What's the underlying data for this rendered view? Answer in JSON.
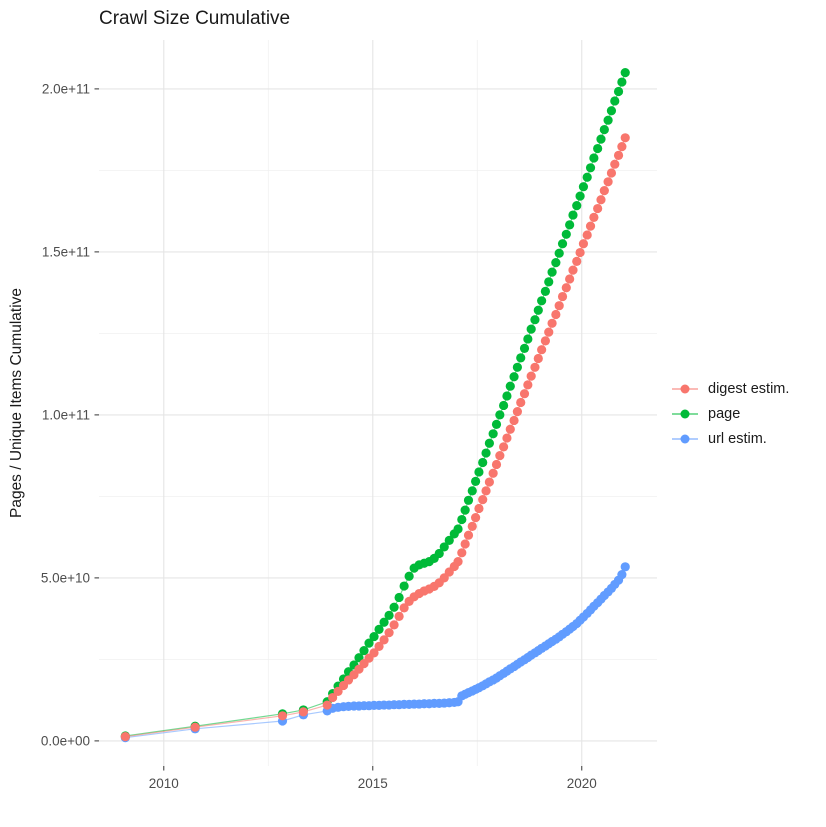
{
  "title": "Crawl Size Cumulative",
  "colors": {
    "digest_estim": "#F8766D",
    "page": "#00BA38",
    "url_estim": "#619CFF",
    "grid_major": "#E5E5E5",
    "grid_minor": "#F0F0F0",
    "tick_mark": "#333333",
    "axis_text": "#4d4d4d",
    "title_text": "#1a1a1a",
    "background": "#ffffff"
  },
  "chart_data": {
    "type": "scatter",
    "title": "Crawl Size Cumulative",
    "xlabel": "",
    "ylabel": "Pages / Unique Items Cumulative",
    "grid": true,
    "legend_position": "right",
    "y_unit": "pages, billions (1e9)",
    "xlim": [
      2008.45,
      2021.8
    ],
    "ylim_billions": [
      -7.7,
      215
    ],
    "x_axis": {
      "major_ticks": [
        2010,
        2015,
        2020
      ],
      "major_labels": [
        "2010",
        "2015",
        "2020"
      ],
      "minor_ticks": [
        2012.5,
        2017.5
      ]
    },
    "y_axis": {
      "major_ticks_billions": [
        0,
        50,
        100,
        150,
        200
      ],
      "major_labels": [
        "0.0e+00",
        "5.0e+10",
        "1.0e+11",
        "1.5e+11",
        "2.0e+11"
      ],
      "minor_ticks_billions": [
        25,
        75,
        125,
        175
      ]
    },
    "x": [
      2009.08,
      2010.75,
      2012.84,
      2013.34,
      2013.91,
      2014.04,
      2014.17,
      2014.3,
      2014.42,
      2014.55,
      2014.67,
      2014.79,
      2014.91,
      2015.03,
      2015.15,
      2015.27,
      2015.39,
      2015.51,
      2015.63,
      2015.75,
      2015.87,
      2015.99,
      2016.11,
      2016.23,
      2016.35,
      2016.47,
      2016.59,
      2016.71,
      2016.83,
      2016.95,
      2017.04,
      2017.13,
      2017.21,
      2017.29,
      2017.38,
      2017.46,
      2017.54,
      2017.63,
      2017.71,
      2017.79,
      2017.88,
      2017.96,
      2018.04,
      2018.13,
      2018.21,
      2018.29,
      2018.38,
      2018.46,
      2018.54,
      2018.63,
      2018.71,
      2018.79,
      2018.88,
      2018.96,
      2019.04,
      2019.13,
      2019.21,
      2019.29,
      2019.38,
      2019.46,
      2019.54,
      2019.63,
      2019.71,
      2019.79,
      2019.88,
      2019.96,
      2020.04,
      2020.13,
      2020.21,
      2020.29,
      2020.38,
      2020.46,
      2020.54,
      2020.63,
      2020.71,
      2020.79,
      2020.88,
      2020.96,
      2021.04
    ],
    "series": [
      {
        "name": "digest estim.",
        "color": "#F8766D",
        "y_billions": [
          1.3,
          4.2,
          7.7,
          8.9,
          11,
          13.3,
          15.2,
          17,
          18.7,
          20.3,
          22,
          23.7,
          25.4,
          27,
          29,
          31,
          33.2,
          35.6,
          38.2,
          40.8,
          42.8,
          44.2,
          45.2,
          46,
          46.6,
          47.4,
          48.5,
          50,
          51.8,
          53.5,
          55,
          57.7,
          60.4,
          63.1,
          65.8,
          68.5,
          71.3,
          74,
          76.7,
          79.4,
          82.1,
          84.8,
          87.5,
          90.2,
          92.9,
          95.6,
          98.3,
          101,
          103.8,
          106.5,
          109.2,
          111.9,
          114.6,
          117.3,
          120,
          122.7,
          125.4,
          128.1,
          130.8,
          133.5,
          136.3,
          139,
          141.7,
          144.4,
          147.1,
          149.8,
          152.5,
          155.2,
          157.9,
          160.6,
          163.3,
          166,
          168.8,
          171.5,
          174.2,
          176.9,
          179.6,
          182.3,
          185
        ]
      },
      {
        "name": "page",
        "color": "#00BA38",
        "y_billions": [
          1.5,
          4.5,
          8.3,
          9.5,
          12,
          14.5,
          16.8,
          19,
          21.2,
          23.3,
          25.5,
          27.7,
          30,
          32,
          34.2,
          36.4,
          38.5,
          41,
          44,
          47.5,
          50.5,
          53,
          54,
          54.5,
          55,
          56,
          57.5,
          59.5,
          61.5,
          63.5,
          65,
          67.9,
          70.8,
          73.8,
          76.7,
          79.6,
          82.5,
          85.4,
          88.3,
          91.3,
          94.2,
          97.1,
          100,
          102.9,
          105.8,
          108.8,
          111.7,
          114.6,
          117.5,
          120.4,
          123.3,
          126.3,
          129.2,
          132.1,
          135,
          137.9,
          140.8,
          143.8,
          146.7,
          149.6,
          152.5,
          155.4,
          158.3,
          161.3,
          164.2,
          167.1,
          170,
          172.9,
          175.8,
          178.8,
          181.7,
          184.6,
          187.5,
          190.4,
          193.3,
          196.3,
          199.2,
          202.1,
          205
        ]
      },
      {
        "name": "url estim.",
        "color": "#619CFF",
        "y_billions": [
          1.0,
          3.7,
          6.1,
          8.0,
          9.2,
          10,
          10.3,
          10.5,
          10.6,
          10.7,
          10.7,
          10.8,
          10.8,
          10.9,
          10.9,
          11,
          11,
          11.1,
          11.1,
          11.2,
          11.2,
          11.3,
          11.3,
          11.4,
          11.4,
          11.5,
          11.5,
          11.6,
          11.7,
          11.8,
          12,
          13.8,
          14.3,
          14.8,
          15.3,
          15.8,
          16.3,
          16.9,
          17.5,
          18.1,
          18.7,
          19.3,
          20,
          20.7,
          21.4,
          22.1,
          22.8,
          23.5,
          24.2,
          24.9,
          25.6,
          26.3,
          27,
          27.7,
          28.4,
          29.1,
          29.8,
          30.5,
          31.2,
          31.9,
          32.7,
          33.5,
          34.3,
          35.1,
          36,
          37,
          38,
          39.1,
          40.2,
          41.3,
          42.4,
          43.5,
          44.6,
          45.7,
          46.8,
          48,
          49.3,
          51,
          53.4
        ]
      }
    ]
  }
}
